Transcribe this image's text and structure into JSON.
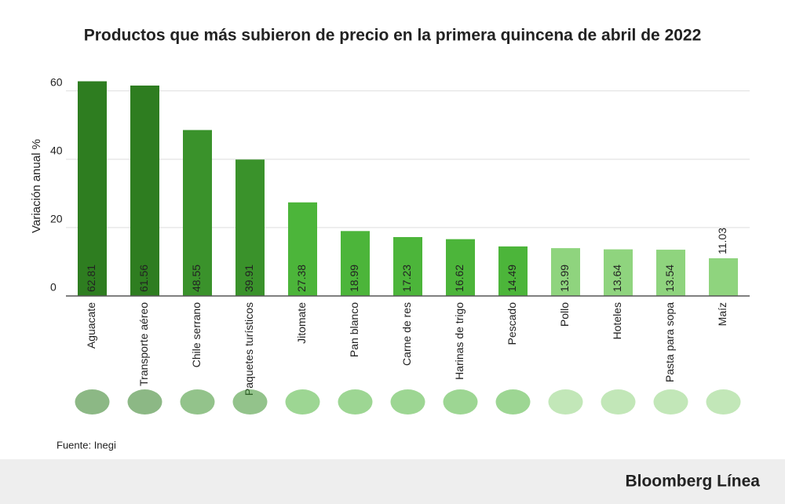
{
  "chart_data": {
    "type": "bar",
    "title": "Productos que más subieron de precio en la primera quincena de abril de 2022",
    "y_label": "Variación anual %",
    "categories": [
      "Aguacate",
      "Transporte aéreo",
      "Chile serrano",
      "Paquetes turísticos",
      "Jitomate",
      "Pan blanco",
      "Carne de res",
      "Harinas de trigo",
      "Pescado",
      "Pollo",
      "Hoteles",
      "Pasta para sopa",
      "Maíz"
    ],
    "values": [
      62.81,
      61.56,
      48.55,
      39.91,
      27.38,
      18.99,
      17.23,
      16.62,
      14.49,
      13.99,
      13.64,
      13.54,
      11.03
    ],
    "colors": [
      "#2e7d20",
      "#2e7d20",
      "#3a922b",
      "#3a922b",
      "#4cb53a",
      "#4cb53a",
      "#4cb53a",
      "#4cb53a",
      "#4cb53a",
      "#8fd47e",
      "#8fd47e",
      "#8fd47e",
      "#8fd47e"
    ],
    "ylim": [
      0,
      65
    ],
    "yticks": [
      0,
      20,
      40,
      60
    ],
    "grid": true
  },
  "source": "Fuente: Inegi",
  "brand": "Bloomberg Línea"
}
